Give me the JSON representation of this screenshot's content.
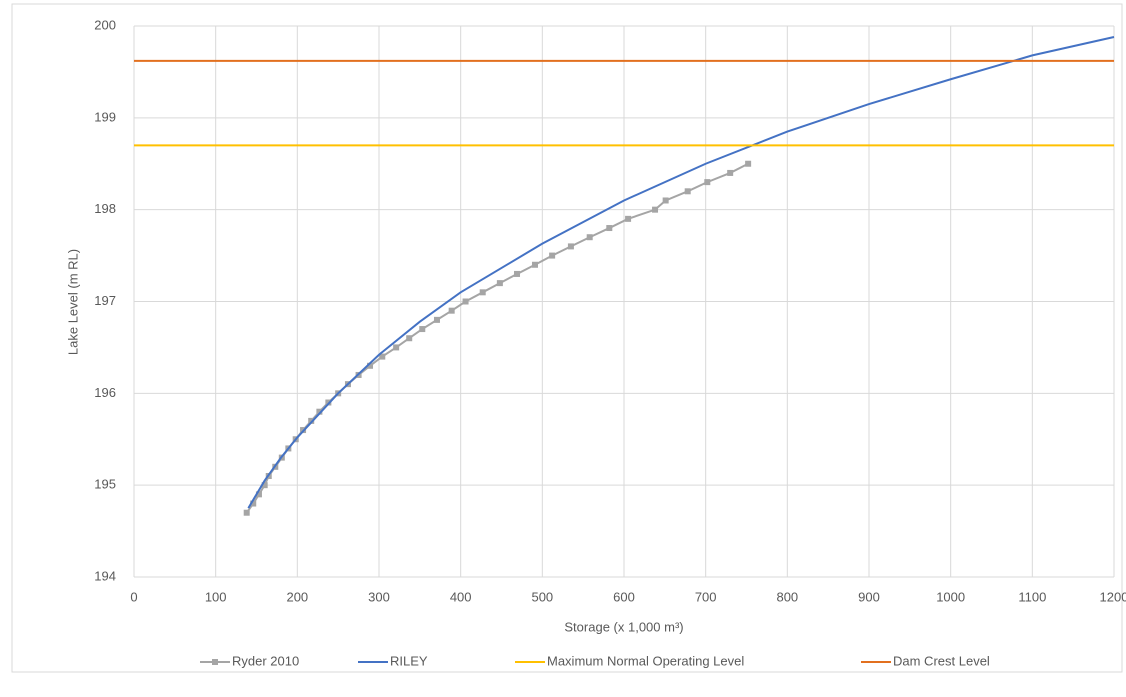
{
  "chart_data": {
    "type": "line",
    "x_label": "Storage (x 1,000 m³)",
    "y_label": "Lake Level (m RL)",
    "xlim": [
      0,
      1200
    ],
    "ylim": [
      194,
      200
    ],
    "xticks": [
      0,
      100,
      200,
      300,
      400,
      500,
      600,
      700,
      800,
      900,
      1000,
      1100,
      1200
    ],
    "yticks": [
      194,
      195,
      196,
      197,
      198,
      199,
      200
    ],
    "grid": true,
    "series": [
      {
        "name": "Ryder 2010",
        "color": "#a5a5a5",
        "markers": true,
        "x": [
          138,
          146,
          153,
          160,
          165,
          173,
          181,
          189,
          198,
          207,
          217,
          227,
          238,
          250,
          262,
          275,
          289,
          304,
          321,
          337,
          353,
          371,
          389,
          406,
          427,
          448,
          469,
          491,
          512,
          535,
          558,
          582,
          605,
          638,
          651,
          678,
          702,
          730,
          752
        ],
        "values": [
          194.7,
          194.8,
          194.9,
          195.0,
          195.1,
          195.2,
          195.3,
          195.4,
          195.5,
          195.6,
          195.7,
          195.8,
          195.9,
          196.0,
          196.1,
          196.2,
          196.3,
          196.4,
          196.5,
          196.6,
          196.7,
          196.8,
          196.9,
          197.0,
          197.1,
          197.2,
          197.3,
          197.4,
          197.5,
          197.6,
          197.7,
          197.8,
          197.9,
          198.0,
          198.1,
          198.2,
          198.3,
          198.4,
          198.5
        ]
      },
      {
        "name": "RILEY",
        "color": "#4472c4",
        "markers": false,
        "x": [
          140,
          160,
          180,
          200,
          250,
          300,
          350,
          400,
          500,
          600,
          700,
          800,
          900,
          1000,
          1100,
          1200
        ],
        "values": [
          194.75,
          195.05,
          195.3,
          195.52,
          196.0,
          196.42,
          196.78,
          197.1,
          197.63,
          198.1,
          198.5,
          198.85,
          199.15,
          199.42,
          199.68,
          199.88
        ]
      },
      {
        "name": "Maximum Normal Operating Level",
        "color": "#ffc000",
        "markers": false,
        "x": [
          0,
          1200
        ],
        "values": [
          198.7,
          198.7
        ]
      },
      {
        "name": "Dam Crest Level",
        "color": "#e2701f",
        "markers": false,
        "x": [
          0,
          1200
        ],
        "values": [
          199.62,
          199.62
        ]
      }
    ]
  }
}
